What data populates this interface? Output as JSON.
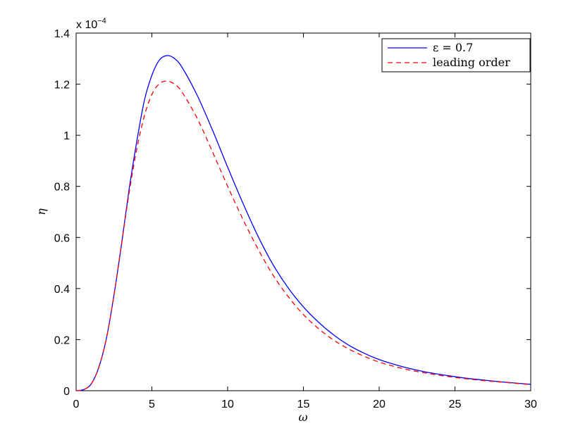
{
  "chart_data": {
    "type": "line",
    "xlabel": "ω",
    "ylabel": "η",
    "xlim": [
      0,
      30
    ],
    "ylim": [
      0,
      0.00014
    ],
    "x_ticks": [
      "0",
      "5",
      "10",
      "15",
      "20",
      "25",
      "30"
    ],
    "y_ticks": [
      "0",
      "0.2",
      "0.4",
      "0.6",
      "0.8",
      "1",
      "1.2",
      "1.4"
    ],
    "y_multiplier": {
      "base": "x 10",
      "exponent": "−4"
    },
    "grid": false,
    "legend_position": "top-right",
    "series": [
      {
        "name": "ε = 0.7",
        "color": "#0000ff",
        "dash": "solid",
        "x": [
          0,
          0.5,
          1,
          1.5,
          2,
          2.5,
          3,
          3.5,
          4,
          4.5,
          5,
          5.5,
          6,
          6.5,
          7,
          8,
          9,
          10,
          11,
          12,
          13,
          14,
          15,
          16,
          17,
          18,
          19,
          20,
          21,
          22,
          23,
          24,
          25,
          26,
          27,
          28,
          29,
          30
        ],
        "y": [
          0,
          4.5e-07,
          2.7e-06,
          9.2e-06,
          2.05e-05,
          3.75e-05,
          5.75e-05,
          7.9e-05,
          9.75e-05,
          0.0001135,
          0.0001235,
          0.0001295,
          0.0001312,
          0.00013,
          0.0001265,
          0.0001155,
          0.000102,
          8.75e-05,
          7.35e-05,
          6.05e-05,
          4.93e-05,
          4.02e-05,
          3.28e-05,
          2.68e-05,
          2.18e-05,
          1.78e-05,
          1.47e-05,
          1.22e-05,
          1.03e-05,
          8.7e-06,
          7.4e-06,
          6.4e-06,
          5.5e-06,
          4.7e-06,
          4.1e-06,
          3.5e-06,
          3e-06,
          2.5e-06
        ]
      },
      {
        "name": "leading order",
        "color": "#ff0000",
        "dash": "dashed",
        "x": [
          0,
          0.5,
          1,
          1.5,
          2,
          2.5,
          3,
          3.5,
          4,
          4.5,
          5,
          5.5,
          6,
          6.5,
          7,
          8,
          9,
          10,
          11,
          12,
          13,
          14,
          15,
          16,
          17,
          18,
          19,
          20,
          21,
          22,
          23,
          24,
          25,
          26,
          27,
          28,
          29,
          30
        ],
        "y": [
          0,
          4.5e-07,
          2.7e-06,
          9.2e-06,
          2.05e-05,
          3.75e-05,
          5.75e-05,
          7.75e-05,
          9.45e-05,
          0.0001075,
          0.000116,
          0.0001202,
          0.0001212,
          0.00012,
          0.0001168,
          0.0001065,
          9.35e-05,
          8e-05,
          6.72e-05,
          5.55e-05,
          4.52e-05,
          3.68e-05,
          2.98e-05,
          2.43e-05,
          1.98e-05,
          1.63e-05,
          1.35e-05,
          1.12e-05,
          9.5e-06,
          8.1e-06,
          7e-06,
          6e-06,
          5.2e-06,
          4.5e-06,
          3.9e-06,
          3.4e-06,
          2.9e-06,
          2.4e-06
        ]
      }
    ]
  }
}
